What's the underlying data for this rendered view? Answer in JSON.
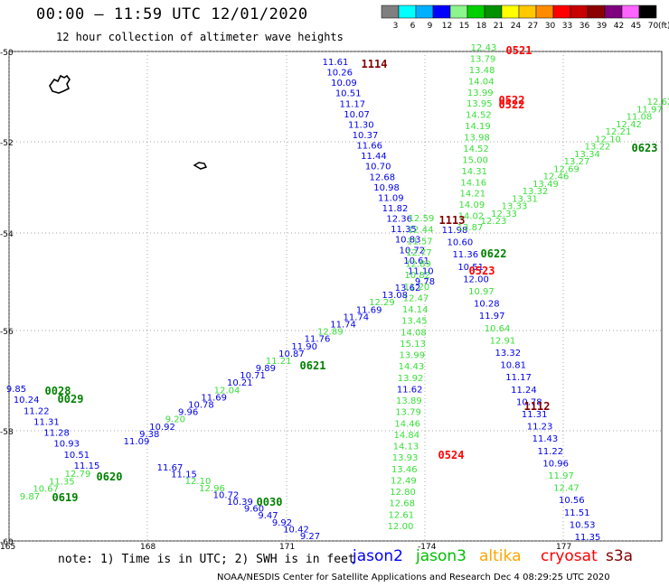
{
  "title": "00:00 – 11:59 UTC 12/01/2020",
  "subtitle": "12 hour collection of altimeter wave heights",
  "colorbar": {
    "colors": [
      "#7f7f7f",
      "#00ffff",
      "#00b0ff",
      "#0000ff",
      "#8cf58c",
      "#00d000",
      "#009000",
      "#ffff00",
      "#ffc800",
      "#ff8c00",
      "#ff0000",
      "#c80000",
      "#8b0000",
      "#800080",
      "#ff64ff",
      "#000000"
    ],
    "labels": [
      "3",
      "6",
      "9",
      "12",
      "15",
      "18",
      "21",
      "24",
      "27",
      "30",
      "33",
      "36",
      "39",
      "42",
      "45",
      "70",
      "(ft)"
    ]
  },
  "axes": {
    "lat_labels": [
      "-50",
      "-52",
      "-54",
      "-56",
      "-58",
      "-60"
    ],
    "lon_labels": [
      "165",
      "168",
      "171",
      "-174",
      "177"
    ]
  },
  "tracks": [
    {
      "time": "1114",
      "color": "#800000",
      "values": [
        "11.61",
        "10.26",
        "10.09",
        "10.51",
        "11.17",
        "10.07",
        "11.30",
        "10.37",
        "11.66",
        "11.44",
        "10.70",
        "12.68",
        "10.98",
        "11.09",
        "11.82",
        "12.36",
        "11.35",
        "10.83",
        "10.72",
        "10.61",
        "11.10",
        "9.78"
      ]
    },
    {
      "time": "1113",
      "color": "#800000",
      "values": [
        "12.59",
        "12.44",
        "11.57",
        "12.77",
        "12.89",
        "10.82",
        "11.20",
        "12.47",
        "14.14",
        "13.45",
        "14.08",
        "15.13",
        "13.99",
        "14.43",
        "13.92",
        "11.62",
        "13.89",
        "13.79",
        "14.46",
        "14.84",
        "14.13",
        "13.93",
        "13.46",
        "12.49",
        "12.80",
        "12.68",
        "12.61",
        "12.00"
      ]
    },
    {
      "time": "1112",
      "color": "#800000",
      "values": [
        "11.98",
        "10.60",
        "11.36",
        "10.51",
        "12.00",
        "10.97",
        "10.28",
        "11.97",
        "10.64",
        "12.91",
        "13.32",
        "10.81",
        "11.17",
        "11.24",
        "10.78",
        "11.31",
        "11.23",
        "11.43",
        "11.22",
        "10.96",
        "11.97",
        "12.47",
        "10.56",
        "11.51",
        "10.53",
        "11.35"
      ]
    },
    {
      "time": "0521",
      "color": "#ff0000",
      "values": [
        "12.43",
        "13.79",
        "13.48",
        "14.04",
        "13.99",
        "13.95",
        "14.52",
        "14.19",
        "13.98",
        "14.52",
        "15.00",
        "14.31",
        "14.16",
        "14.21",
        "14.09",
        "14.02",
        "13.87"
      ]
    },
    {
      "time": "0522",
      "color": "#ff0000",
      "values": []
    },
    {
      "time": "0523",
      "color": "#ff0000",
      "values": []
    },
    {
      "time": "0524",
      "color": "#ff0000",
      "values": []
    },
    {
      "time": "0623",
      "color": "#008000",
      "values": [
        "12.62",
        "11.97",
        "11.08",
        "12.42",
        "12.21",
        "12.10",
        "13.22",
        "13.34",
        "13.27",
        "12.69",
        "12.46",
        "13.49",
        "13.32",
        "13.31",
        "13.33",
        "12.33",
        "12.23"
      ]
    },
    {
      "time": "0622",
      "color": "#008000",
      "values": []
    },
    {
      "time": "0621",
      "color": "#008000",
      "values": [
        "13.62",
        "13.08",
        "12.29",
        "11.69",
        "11.74",
        "11.74",
        "12.89",
        "11.76",
        "11.90",
        "10.87",
        "11.21",
        "9.89",
        "10.71",
        "10.21",
        "12.04",
        "11.69",
        "10.78",
        "9.96",
        "9.20",
        "10.92",
        "9.38",
        "11.09"
      ]
    },
    {
      "time": "0620",
      "color": "#008000",
      "values": [
        "11.15",
        "10.51",
        "10.93",
        "11.28",
        "11.31",
        "11.22",
        "10.24",
        "9.85"
      ]
    },
    {
      "time": "0619",
      "color": "#008000",
      "values": [
        "12.79",
        "11.35",
        "10.67",
        "9.87"
      ]
    },
    {
      "time": "0028",
      "color": "#008000",
      "values": []
    },
    {
      "time": "0029",
      "color": "#008000",
      "values": []
    },
    {
      "time": "0030",
      "color": "#008000",
      "values": [
        "11.67",
        "11.15",
        "12.10",
        "12.96",
        "10.72",
        "10.39",
        "9.60",
        "9.47",
        "9.92",
        "10.42",
        "9.27"
      ]
    }
  ],
  "note": "note: 1) Time is in UTC; 2) SWH is in feet",
  "satellites": [
    {
      "name": "jason2",
      "color": "#0000ff"
    },
    {
      "name": "jason3",
      "color": "#00c000"
    },
    {
      "name": "altika",
      "color": "#ffa500"
    },
    {
      "name": "cryosat",
      "color": "#ff0000"
    },
    {
      "name": "s3a",
      "color": "#800000"
    }
  ],
  "footer": "NOAA/NESDIS Center for Satellite Applications and Research   Dec  4 08:29:25 UTC 2020"
}
